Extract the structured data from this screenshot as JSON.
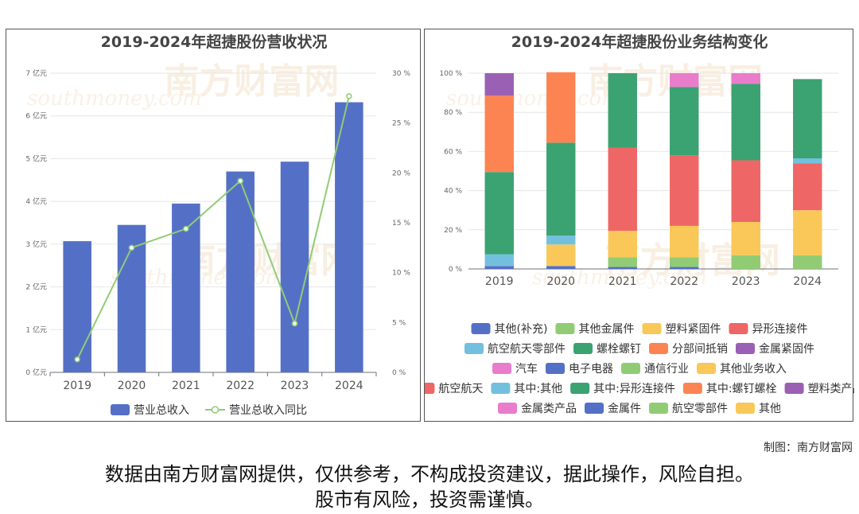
{
  "credit": "制图：南方财富网",
  "disclaimer": {
    "line1": "数据由南方财富网提供，仅供参考，不构成投资建议，据此操作，风险自担。",
    "line2": "股市有风险，投资需谨慎。"
  },
  "chart_data": [
    {
      "type": "bar",
      "title": "2019-2024年超捷股份营收状况",
      "categories": [
        "2019",
        "2020",
        "2021",
        "2022",
        "2023",
        "2024"
      ],
      "series": [
        {
          "name": "营业总收入",
          "type": "bar",
          "values": [
            3.07,
            3.45,
            3.95,
            4.7,
            4.93,
            6.32
          ],
          "color": "#5470c6"
        },
        {
          "name": "营业总收入同比",
          "type": "line",
          "values": [
            1.3,
            12.5,
            14.4,
            19.2,
            4.9,
            27.7
          ],
          "color": "#91cc75"
        }
      ],
      "y_left": {
        "ticks": [
          "0 亿元",
          "1 亿元",
          "2 亿元",
          "3 亿元",
          "4 亿元",
          "5 亿元",
          "6 亿元",
          "7 亿元"
        ],
        "ylim": [
          0,
          7
        ]
      },
      "y_right": {
        "ticks": [
          "0 %",
          "5 %",
          "10 %",
          "15 %",
          "20 %",
          "25 %",
          "30 %"
        ],
        "ylim": [
          0,
          30
        ]
      },
      "legend_position": "bottom",
      "grid": true
    },
    {
      "type": "bar",
      "stacked": true,
      "title": "2019-2024年超捷股份业务结构变化",
      "categories": [
        "2019",
        "2020",
        "2021",
        "2022",
        "2023",
        "2024"
      ],
      "y_ticks": [
        "0 %",
        "20 %",
        "40 %",
        "60 %",
        "80 %",
        "100 %"
      ],
      "ylim": [
        0,
        100
      ],
      "legend_position": "bottom",
      "series": [
        {
          "name": "其他(补充)",
          "color": "#5470c6",
          "values": [
            1.5,
            1.5,
            0,
            0,
            0,
            0
          ]
        },
        {
          "name": "其他金属件",
          "color": "#91cc75",
          "values": [
            0,
            0,
            0,
            0,
            0,
            0
          ]
        },
        {
          "name": "塑料紧固件",
          "color": "#fac858",
          "values": [
            0,
            0,
            0,
            0,
            0,
            0
          ]
        },
        {
          "name": "异形连接件",
          "color": "#ee6666",
          "values": [
            0,
            0,
            0,
            0,
            0,
            0
          ]
        },
        {
          "name": "航空航天零部件",
          "color": "#73c0de",
          "values": [
            6,
            0,
            0,
            0,
            0,
            0
          ]
        },
        {
          "name": "螺栓螺钉",
          "color": "#3ba272",
          "values": [
            42,
            0,
            0,
            0,
            0,
            0
          ]
        },
        {
          "name": "分部间抵销",
          "color": "#fc8452",
          "values": [
            39,
            0,
            0,
            0,
            0,
            0
          ]
        },
        {
          "name": "金属紧固件",
          "color": "#9a60b4",
          "values": [
            11.5,
            0,
            0,
            0,
            0,
            0
          ]
        },
        {
          "name": "汽车",
          "color": "#ea7ccc",
          "values": [
            0,
            0,
            0,
            0,
            0,
            0
          ]
        },
        {
          "name": "电子电器",
          "color": "#5470c6",
          "values": [
            0,
            0,
            1,
            1,
            0,
            0
          ]
        },
        {
          "name": "通信行业",
          "color": "#91cc75",
          "values": [
            0,
            0,
            5,
            5,
            7,
            7
          ]
        },
        {
          "name": "其他业务收入",
          "color": "#fac858",
          "values": [
            0,
            11,
            13.5,
            16,
            17,
            23
          ]
        },
        {
          "name": "航空航天",
          "color": "#ee6666",
          "values": [
            0,
            0,
            42.5,
            36,
            31.5,
            24
          ]
        },
        {
          "name": "其中:其他",
          "color": "#73c0de",
          "values": [
            0,
            4.5,
            0,
            0,
            0,
            2.5
          ]
        },
        {
          "name": "其中:异形连接件",
          "color": "#3ba272",
          "values": [
            0,
            47.5,
            38,
            35,
            39,
            40.5
          ]
        },
        {
          "name": "其中:螺钉螺栓",
          "color": "#fc8452",
          "values": [
            0,
            36,
            0,
            0,
            0,
            0
          ]
        },
        {
          "name": "塑料类产品",
          "color": "#9a60b4",
          "values": [
            0,
            0,
            0,
            0,
            0,
            0
          ]
        },
        {
          "name": "金属类产品",
          "color": "#ea7ccc",
          "values": [
            0,
            0,
            0,
            7,
            5.5,
            0
          ]
        },
        {
          "name": "金属件",
          "color": "#5470c6",
          "values": [
            0,
            0,
            0,
            0,
            0,
            0
          ]
        },
        {
          "name": "航空零部件",
          "color": "#91cc75",
          "values": [
            0,
            0,
            0,
            0,
            0,
            0
          ]
        },
        {
          "name": "其他",
          "color": "#fac858",
          "values": [
            0,
            0,
            0,
            0,
            0,
            0
          ]
        }
      ]
    }
  ]
}
